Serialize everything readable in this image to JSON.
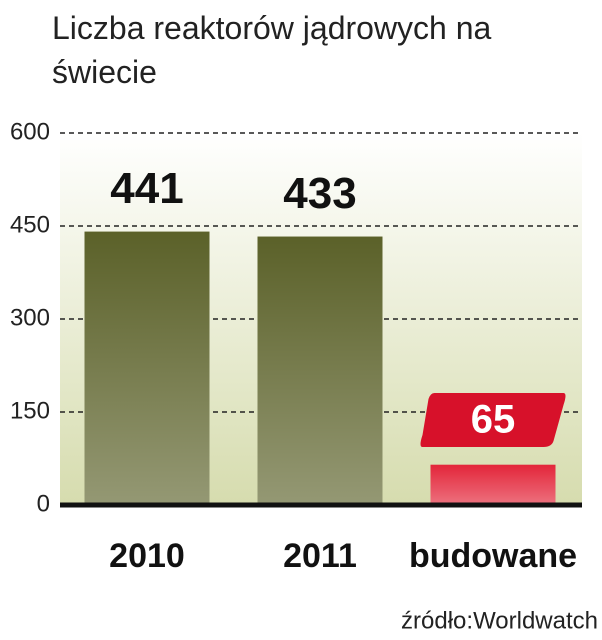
{
  "chart_data": {
    "type": "bar",
    "title": "Liczba reaktorów jądrowych na świecie",
    "categories": [
      "2010",
      "2011",
      "budowane"
    ],
    "values": [
      441,
      433,
      65
    ],
    "colors": [
      "#5b6129",
      "#5b6129",
      "#e3263a"
    ],
    "value_label_boxed": [
      false,
      false,
      true
    ],
    "ylim": [
      0,
      600
    ],
    "yticks": [
      0,
      150,
      300,
      450,
      600
    ],
    "grid": true,
    "source": "źródło:Worldwatch"
  }
}
